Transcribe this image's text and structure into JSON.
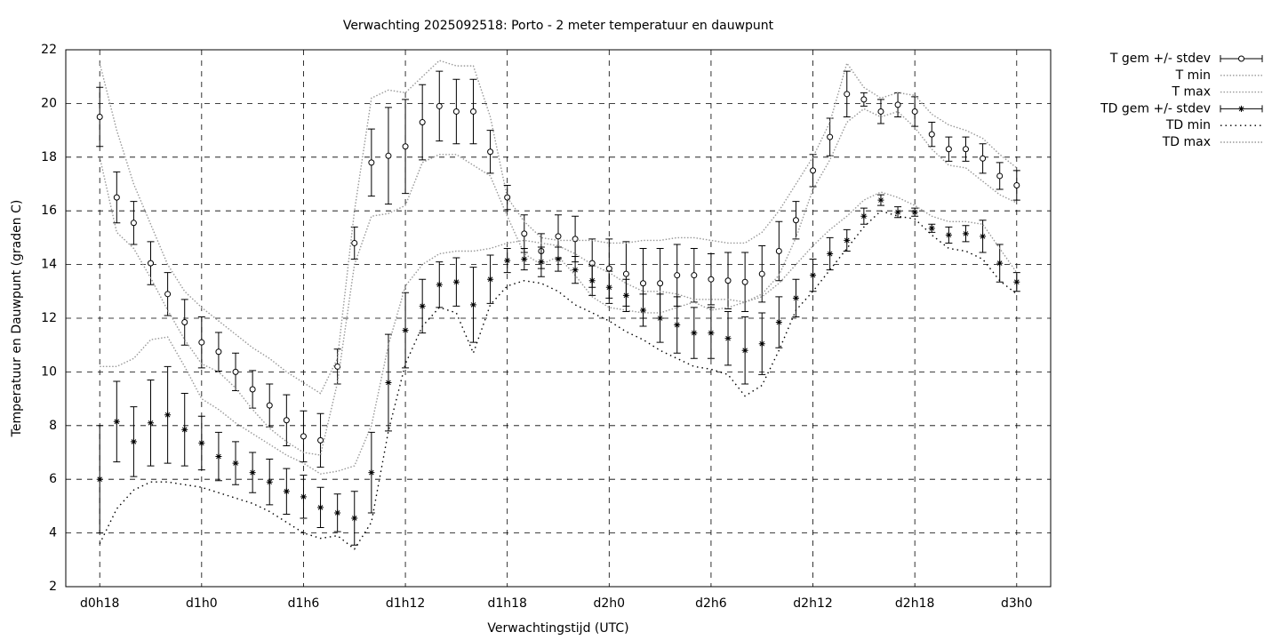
{
  "chart_data": {
    "type": "errorbar-line",
    "title": "Verwachting 2025092518: Porto - 2 meter temperatuur en dauwpunt",
    "x_label": "Verwachtingstijd (UTC)",
    "y_label": "Temperatuur en Dauwpunt (graden C)",
    "x": [
      18,
      19,
      20,
      21,
      22,
      23,
      24,
      25,
      26,
      27,
      28,
      29,
      30,
      31,
      32,
      33,
      34,
      35,
      36,
      37,
      38,
      39,
      40,
      41,
      42,
      43,
      44,
      45,
      46,
      47,
      48,
      49,
      50,
      51,
      52,
      53,
      54,
      55,
      56,
      57,
      58,
      59,
      60,
      61,
      62,
      63,
      64,
      65,
      66,
      67,
      68,
      69,
      70,
      71,
      72
    ],
    "xlim": [
      16,
      74
    ],
    "ylim": [
      2,
      22
    ],
    "xticks": [
      {
        "value": 18,
        "label": "d0h18"
      },
      {
        "value": 24,
        "label": "d1h0"
      },
      {
        "value": 30,
        "label": "d1h6"
      },
      {
        "value": 36,
        "label": "d1h12"
      },
      {
        "value": 42,
        "label": "d1h18"
      },
      {
        "value": 48,
        "label": "d2h0"
      },
      {
        "value": 54,
        "label": "d2h6"
      },
      {
        "value": 60,
        "label": "d2h12"
      },
      {
        "value": 66,
        "label": "d2h18"
      },
      {
        "value": 72,
        "label": "d3h0"
      }
    ],
    "yticks": [
      2,
      4,
      6,
      8,
      10,
      12,
      14,
      16,
      18,
      20,
      22
    ],
    "grid": true,
    "legend": "outside-top-right",
    "series": [
      {
        "name": "T gem +/- stdev",
        "color": "#000000",
        "style": "errorbars",
        "marker": "circle",
        "values": [
          19.5,
          16.5,
          15.55,
          14.05,
          12.9,
          11.85,
          11.1,
          10.75,
          10.0,
          9.35,
          8.75,
          8.2,
          7.6,
          7.45,
          10.2,
          14.8,
          17.8,
          18.05,
          18.4,
          19.3,
          19.9,
          19.7,
          19.7,
          18.2,
          16.5,
          15.15,
          14.5,
          15.05,
          14.95,
          14.05,
          13.85,
          13.65,
          13.3,
          13.3,
          13.6,
          13.6,
          13.45,
          13.4,
          13.35,
          13.65,
          14.5,
          15.65,
          17.5,
          18.75,
          20.35,
          20.15,
          19.7,
          19.95,
          19.7,
          18.85,
          18.3,
          18.3,
          17.95,
          17.3,
          16.95
        ],
        "errors": [
          1.1,
          0.95,
          0.8,
          0.8,
          0.8,
          0.85,
          0.95,
          0.72,
          0.7,
          0.7,
          0.8,
          0.95,
          0.95,
          1.0,
          0.65,
          0.6,
          1.25,
          1.8,
          1.75,
          1.4,
          1.3,
          1.2,
          1.2,
          0.8,
          0.45,
          0.7,
          0.65,
          0.8,
          0.85,
          0.9,
          1.1,
          1.2,
          1.3,
          1.3,
          1.15,
          1.0,
          0.95,
          1.05,
          1.1,
          1.05,
          1.1,
          0.7,
          0.6,
          0.7,
          0.85,
          0.25,
          0.45,
          0.45,
          0.55,
          0.45,
          0.45,
          0.45,
          0.55,
          0.5,
          0.55
        ]
      },
      {
        "name": "T min",
        "color": "#999999",
        "style": "dotted",
        "values": [
          18,
          15.2,
          14.6,
          13.5,
          12.3,
          11.2,
          10.3,
          10,
          9.4,
          8.6,
          7.9,
          7.4,
          7,
          6.9,
          9.6,
          14,
          15.8,
          15.9,
          16.2,
          17.8,
          18.1,
          18.1,
          17.7,
          17.3,
          15.8,
          14.4,
          14,
          14.3,
          13.6,
          12.8,
          12.4,
          12.3,
          12.2,
          12.2,
          12.4,
          12.6,
          12.3,
          12.4,
          12.6,
          12.9,
          13.6,
          15,
          16.8,
          17.9,
          19.3,
          19.8,
          19.5,
          19.7,
          19.1,
          18.3,
          17.7,
          17.6,
          17.1,
          16.6,
          16.3
        ]
      },
      {
        "name": "T max",
        "color": "#999999",
        "style": "dotted",
        "values": [
          21.5,
          19,
          17,
          15.5,
          14,
          13,
          12.4,
          11.9,
          11.4,
          10.9,
          10.5,
          10,
          9.6,
          9.2,
          10.5,
          16,
          20.2,
          20.5,
          20.4,
          21,
          21.6,
          21.4,
          21.4,
          19.5,
          16.5,
          15.6,
          15,
          14.9,
          14.9,
          14.9,
          14.8,
          14.8,
          14.9,
          14.9,
          15,
          15,
          14.9,
          14.8,
          14.8,
          15.2,
          16,
          17,
          18,
          19.3,
          21.5,
          20.6,
          20.2,
          20.4,
          20.3,
          19.6,
          19.2,
          19,
          18.7,
          18.1,
          17.6
        ]
      },
      {
        "name": "TD gem +/- stdev",
        "color": "#000000",
        "style": "errorbars",
        "marker": "star",
        "values": [
          6.0,
          8.15,
          7.4,
          8.1,
          8.4,
          7.85,
          7.35,
          6.85,
          6.6,
          6.25,
          5.9,
          5.55,
          5.35,
          4.95,
          4.75,
          4.55,
          6.25,
          9.6,
          11.55,
          12.45,
          13.25,
          13.35,
          12.5,
          13.45,
          14.15,
          14.2,
          14.1,
          14.2,
          13.8,
          13.4,
          13.15,
          12.85,
          12.3,
          12.0,
          11.75,
          11.45,
          11.45,
          11.25,
          10.8,
          11.05,
          11.85,
          12.75,
          13.6,
          14.4,
          14.9,
          15.8,
          16.4,
          15.95,
          15.95,
          15.35,
          15.1,
          15.15,
          15.05,
          14.05,
          13.35
        ],
        "errors": [
          2.0,
          1.5,
          1.3,
          1.6,
          1.8,
          1.35,
          1.0,
          0.9,
          0.8,
          0.75,
          0.85,
          0.85,
          0.8,
          0.75,
          0.7,
          1.0,
          1.5,
          1.8,
          1.4,
          1.0,
          0.85,
          0.9,
          1.4,
          0.9,
          0.45,
          0.4,
          0.55,
          0.45,
          0.5,
          0.55,
          0.6,
          0.6,
          0.6,
          0.9,
          1.05,
          0.95,
          0.95,
          1.0,
          1.25,
          1.15,
          0.95,
          0.7,
          0.6,
          0.6,
          0.4,
          0.3,
          0.2,
          0.2,
          0.15,
          0.15,
          0.3,
          0.3,
          0.6,
          0.7,
          0.35
        ]
      },
      {
        "name": "TD min",
        "color": "#000000",
        "style": "dotted",
        "values": [
          3.6,
          4.9,
          5.6,
          5.9,
          5.9,
          5.8,
          5.7,
          5.5,
          5.3,
          5.1,
          4.8,
          4.4,
          4,
          3.8,
          3.9,
          3.4,
          4.4,
          7.8,
          10.3,
          11.7,
          12.4,
          12.2,
          10.7,
          12.5,
          13.2,
          13.4,
          13.3,
          13,
          12.5,
          12.2,
          11.9,
          11.5,
          11.2,
          10.8,
          10.5,
          10.2,
          10.1,
          9.9,
          9.1,
          9.5,
          10.8,
          12.3,
          13,
          13.8,
          14.6,
          15.4,
          16,
          15.8,
          15.7,
          15.1,
          14.6,
          14.5,
          14.2,
          13.4,
          12.9
        ]
      },
      {
        "name": "TD max",
        "color": "#999999",
        "style": "dotted",
        "values": [
          10.2,
          10.2,
          10.5,
          11.2,
          11.3,
          10.2,
          9,
          8.6,
          8.1,
          7.7,
          7.3,
          6.9,
          6.6,
          6.2,
          6.3,
          6.5,
          8,
          11,
          13.2,
          14,
          14.4,
          14.5,
          14.5,
          14.6,
          14.8,
          14.9,
          14.8,
          14.7,
          14.4,
          14,
          13.7,
          13.3,
          13,
          13,
          12.9,
          12.7,
          12.7,
          12.7,
          12.6,
          12.8,
          13.3,
          14,
          14.7,
          15.3,
          15.8,
          16.4,
          16.7,
          16.5,
          16.2,
          15.8,
          15.6,
          15.6,
          15.5,
          14.6,
          13.7
        ]
      }
    ]
  }
}
